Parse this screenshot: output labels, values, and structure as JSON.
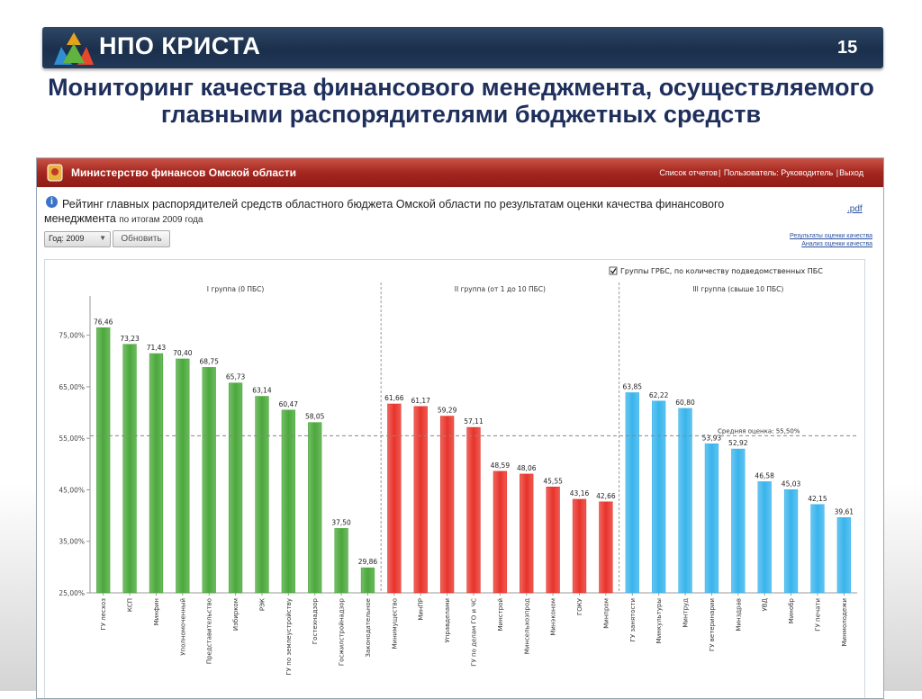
{
  "banner": {
    "brand": "НПО КРИСТА",
    "slide_number": "15"
  },
  "slide_title": "Мониторинг качества финансового менеджмента, осуществляемого главными распорядителями бюджетных средств",
  "app": {
    "title": "Министерство финансов Омской области",
    "nav_reports": "Список отчетов",
    "nav_sep1": "|",
    "nav_user": "Пользователь: Руководитель",
    "nav_sep2": "|",
    "nav_exit": "Выход"
  },
  "report": {
    "title_line1": "Рейтинг главных распорядителей средств областного бюджета Омской области по результатам оценки качества финансового",
    "title_line2": "менеджмента",
    "subtitle": "по итогам 2009 года",
    "pdf": ".pdf",
    "year_label": "Год: 2009",
    "refresh": "Обновить",
    "link_results": "Результаты оценки качества",
    "link_analysis": "Анализ оценки качества"
  },
  "chart_data": {
    "type": "bar",
    "checkbox_label": "Группы ГРБС, по количеству подведомственных ПБС",
    "y_ticks": [
      "25,00%",
      "35,00%",
      "45,00%",
      "55,00%",
      "65,00%",
      "75,00%"
    ],
    "ylim": [
      25,
      80
    ],
    "average_label": "Средняя оценка: 55,50%",
    "average_value": 55.5,
    "groups": [
      {
        "label": "I группа (0 ПБС)",
        "color": "#4aa83a",
        "categories": [
          "ГУ лесхоз",
          "КСП",
          "Минфин",
          "Уполномоченный",
          "Представительство",
          "Избирком",
          "РЭК",
          "ГУ по землеустройству",
          "Гостехнадзор",
          "Госжилстройнадзор",
          "Законодательное"
        ],
        "values": [
          76.46,
          73.23,
          71.43,
          70.4,
          68.75,
          65.73,
          63.14,
          60.47,
          58.05,
          37.5,
          29.86
        ],
        "labels": [
          "76,46",
          "73,23",
          "71,43",
          "70,40",
          "68,75",
          "65,73",
          "63,14",
          "60,47",
          "58,05",
          "37,50",
          "29,86"
        ]
      },
      {
        "label": "II группа (от 1 до 10 ПБС)",
        "color": "#e8332a",
        "categories": [
          "Минимущество",
          "МинПР",
          "Управделами",
          "ГУ по делам ГО и ЧС",
          "Минстрой",
          "Минсельхозпрод",
          "Минэконом",
          "ГОКУ",
          "Минпром"
        ],
        "values": [
          61.66,
          61.17,
          59.29,
          57.11,
          48.59,
          48.06,
          45.55,
          43.16,
          42.66
        ],
        "labels": [
          "61,66",
          "61,17",
          "59,29",
          "57,11",
          "48,59",
          "48,06",
          "45,55",
          "43,16",
          "42,66"
        ]
      },
      {
        "label": "III группа (свыше 10 ПБС)",
        "color": "#38b4ec",
        "categories": [
          "ГУ занятости",
          "Минкультуры",
          "Минтруд",
          "ГУ ветеринарии",
          "Минздрав",
          "УВД",
          "Минобр",
          "ГУ печати",
          "Минмолодежи"
        ],
        "values": [
          63.85,
          62.22,
          60.8,
          53.93,
          52.92,
          46.58,
          45.03,
          42.15,
          39.61
        ],
        "labels": [
          "63,85",
          "62,22",
          "60,80",
          "53,93",
          "52,92",
          "46,58",
          "45,03",
          "42,15",
          "39,61"
        ]
      }
    ]
  }
}
